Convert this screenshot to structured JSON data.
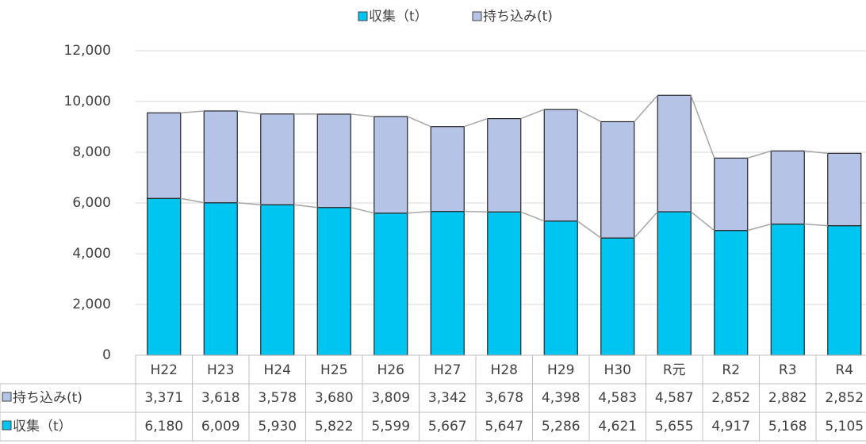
{
  "chart_data": {
    "type": "stacked_bar",
    "categories": [
      "H22",
      "H23",
      "H24",
      "H25",
      "H26",
      "H27",
      "H28",
      "H29",
      "H30",
      "R元",
      "R2",
      "R3",
      "R4"
    ],
    "series": [
      {
        "name": "収集（t）",
        "color": "#00c5f0",
        "values": [
          6180,
          6009,
          5930,
          5822,
          5599,
          5667,
          5647,
          5286,
          4621,
          5655,
          4917,
          5168,
          5105
        ],
        "value_labels": [
          "6,180",
          "6,009",
          "5,930",
          "5,822",
          "5,599",
          "5,667",
          "5,647",
          "5,286",
          "4,621",
          "5,655",
          "4,917",
          "5,168",
          "5,105"
        ]
      },
      {
        "name": "持ち込み(t)",
        "color": "#b4c3e6",
        "values": [
          3371,
          3618,
          3578,
          3680,
          3809,
          3342,
          3678,
          4398,
          4583,
          4587,
          2852,
          2882,
          2852
        ],
        "value_labels": [
          "3,371",
          "3,618",
          "3,578",
          "3,680",
          "3,809",
          "3,342",
          "3,678",
          "4,398",
          "4,583",
          "4,587",
          "2,852",
          "2,882",
          "2,852"
        ]
      }
    ],
    "ylim": [
      0,
      12000
    ],
    "yticks": [
      0,
      {
        "value": 2000,
        "label": "2,000"
      },
      {
        "value": 4000,
        "label": "4,000"
      },
      {
        "value": 6000,
        "label": "6,000"
      },
      {
        "value": 8000,
        "label": "8,000"
      },
      {
        "value": 10000,
        "label": "10,000"
      },
      {
        "value": 12000,
        "label": "12,000"
      }
    ],
    "grid": true,
    "legend": "top"
  }
}
